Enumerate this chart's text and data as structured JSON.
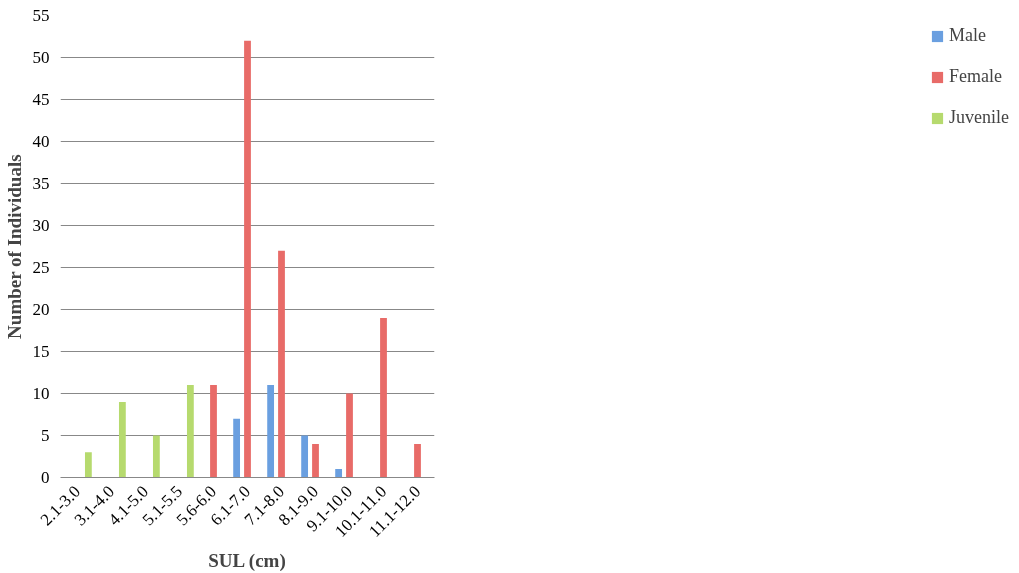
{
  "chart_data": {
    "type": "bar",
    "xlabel": "SUL (cm)",
    "ylabel": "Number of Individuals",
    "categories": [
      "2.1-3.0",
      "3.1-4.0",
      "4.1-5.0",
      "5.1-5.5",
      "5.6-6.0",
      "6.1-7.0",
      "7.1-8.0",
      "8.1-9.0",
      "9.1-10.0",
      "10.1-11.0",
      "11.1-12.0"
    ],
    "series": [
      {
        "name": "Male",
        "color": "#6a9fe0",
        "values": [
          0,
          0,
          0,
          0,
          0,
          7,
          11,
          5,
          1,
          0,
          0
        ]
      },
      {
        "name": "Female",
        "color": "#e86b68",
        "values": [
          0,
          0,
          0,
          0,
          11,
          52,
          27,
          4,
          10,
          19,
          4
        ]
      },
      {
        "name": "Juvenile",
        "color": "#b6da6e",
        "values": [
          3,
          9,
          5,
          11,
          0,
          0,
          0,
          0,
          0,
          0,
          0
        ]
      }
    ],
    "ylim": [
      0,
      55
    ],
    "yticks": [
      0,
      5,
      10,
      15,
      20,
      25,
      30,
      35,
      40,
      45,
      50,
      55
    ],
    "grid": "y",
    "legend": "right"
  }
}
